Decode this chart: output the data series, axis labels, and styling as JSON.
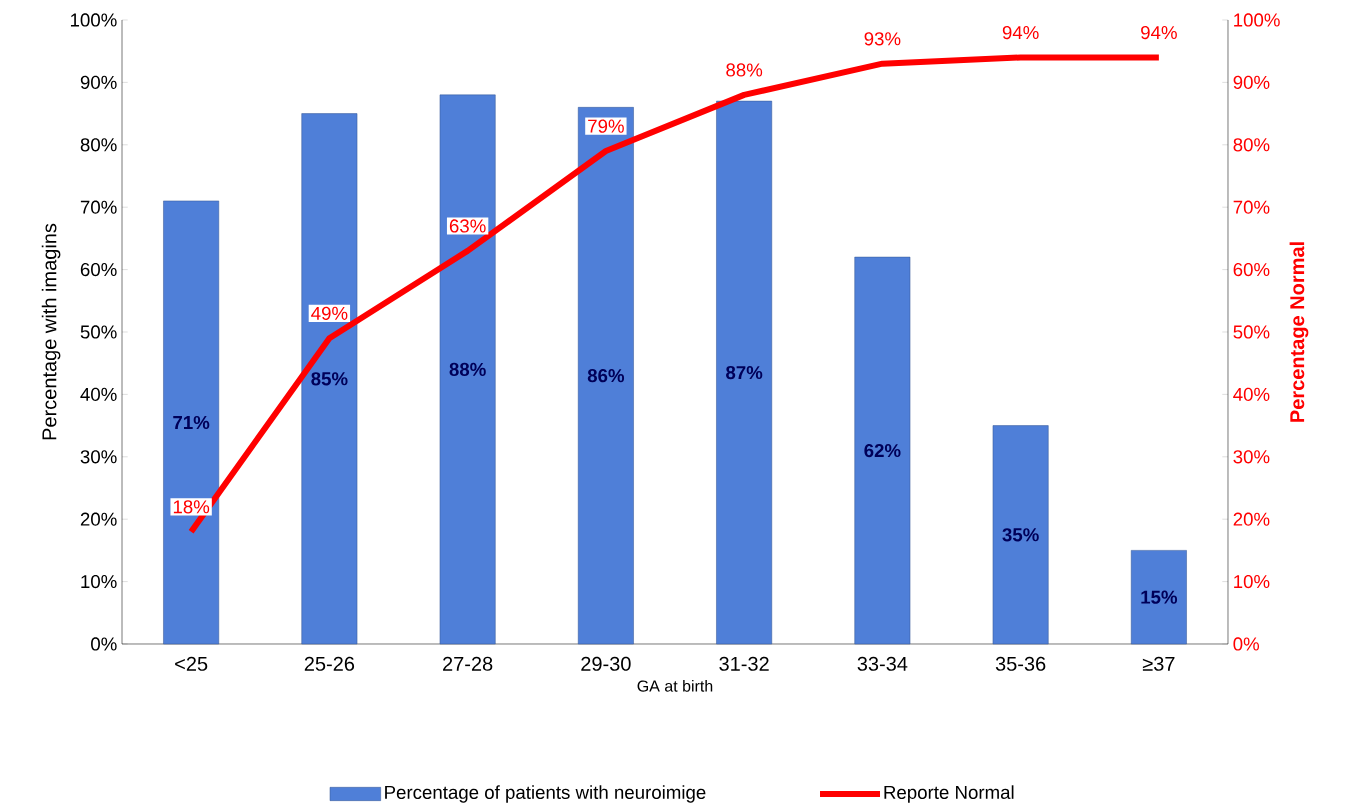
{
  "chart_data": {
    "type": "bar",
    "categories": [
      "<25",
      "25-26",
      "27-28",
      "29-30",
      "31-32",
      "33-34",
      "35-36",
      "≥37"
    ],
    "xlabel": "GA at birth",
    "ylabel": "Percentage with imagins",
    "y2label": "Percentage Normal",
    "ylim": [
      0,
      100
    ],
    "yticks": [
      {
        "value": 0,
        "label": "0%"
      },
      {
        "value": 10,
        "label": "10%"
      },
      {
        "value": 20,
        "label": "20%"
      },
      {
        "value": 30,
        "label": "30%"
      },
      {
        "value": 40,
        "label": "40%"
      },
      {
        "value": 50,
        "label": "50%"
      },
      {
        "value": 60,
        "label": "60%"
      },
      {
        "value": 70,
        "label": "70%"
      },
      {
        "value": 80,
        "label": "80%"
      },
      {
        "value": 90,
        "label": "90%"
      },
      {
        "value": 100,
        "label": "100%"
      }
    ],
    "y2lim": [
      0,
      100
    ],
    "y2ticks": [
      {
        "value": 0,
        "label": "0%"
      },
      {
        "value": 10,
        "label": "10%"
      },
      {
        "value": 20,
        "label": "20%"
      },
      {
        "value": 30,
        "label": "30%"
      },
      {
        "value": 40,
        "label": "40%"
      },
      {
        "value": 50,
        "label": "50%"
      },
      {
        "value": 60,
        "label": "60%"
      },
      {
        "value": 70,
        "label": "70%"
      },
      {
        "value": 80,
        "label": "80%"
      },
      {
        "value": 90,
        "label": "90%"
      },
      {
        "value": 100,
        "label": "100%"
      }
    ],
    "legend": "bottom",
    "series": [
      {
        "name": "Percentage of patients with neuroimige",
        "color": "#4f7fd8",
        "values": [
          71,
          85,
          88,
          86,
          87,
          62,
          35,
          15
        ],
        "value_labels": [
          "71%",
          "85%",
          "88%",
          "86%",
          "87%",
          "62%",
          "35%",
          "15%"
        ]
      },
      {
        "name": "Reporte Normal",
        "type": "line",
        "axis": "y2",
        "color": "#ff0000",
        "values": [
          18,
          49,
          63,
          79,
          88,
          93,
          94,
          94
        ],
        "value_labels": [
          "18%",
          "49%",
          "63%",
          "79%",
          "88%",
          "93%",
          "94%",
          "94%"
        ]
      }
    ]
  }
}
